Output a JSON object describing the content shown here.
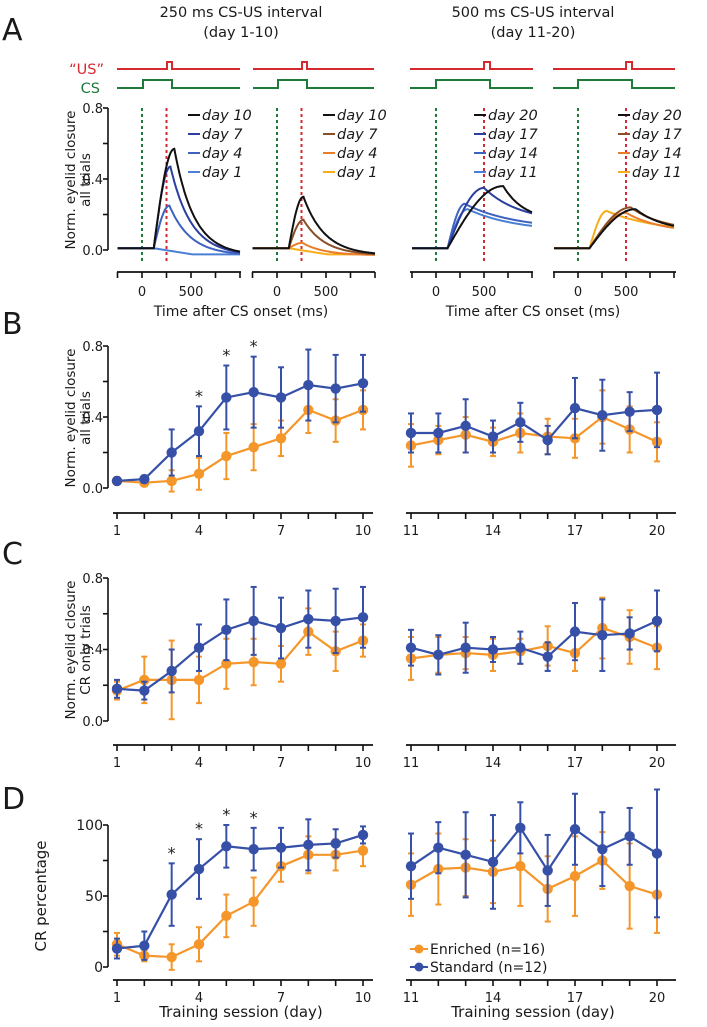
{
  "colors": {
    "standard": "#3650a8",
    "enriched": "#f5962a",
    "us": "#d6282f",
    "cs": "#1e7a3a",
    "axis": "#111111",
    "day_black": "#111111",
    "blue_dark": "#2b3fa0",
    "blue_mid": "#3d62c0",
    "blue_light": "#4a7fd6",
    "brown": "#8a4f26",
    "orange_mid": "#e87d2a",
    "yellow_orange": "#f7ad1a"
  },
  "panel_labels": [
    "A",
    "B",
    "C",
    "D"
  ],
  "headers": {
    "left_line1": "250 ms CS-US interval",
    "left_line2": "(day 1-10)",
    "right_line1": "500 ms CS-US interval",
    "right_line2": "(day 11-20)"
  },
  "stimulus_labels": {
    "us": "“US”",
    "cs": "CS"
  },
  "panel_a": {
    "ylabel_line1": "Norm. eyelid closure",
    "ylabel_line2": "all trials",
    "yticks": [
      "0.8",
      "0.4",
      "0.0"
    ],
    "xticks": [
      "0",
      "500"
    ],
    "xlabel": "Time after CS onset (ms)",
    "legends": [
      [
        "day 10",
        "day 7",
        "day 4",
        "day 1"
      ],
      [
        "day 10",
        "day 7",
        "day 4",
        "day 1"
      ],
      [
        "day 20",
        "day 17",
        "day 14",
        "day 11"
      ],
      [
        "day 20",
        "day 17",
        "day 14",
        "day 11"
      ]
    ]
  },
  "panel_b": {
    "ylabel_line1": "Norm. eyelid closure",
    "ylabel_line2": "all trials",
    "yticks": [
      "0.8",
      "0.4",
      "0.0"
    ]
  },
  "panel_c": {
    "ylabel_line1": "Norm. eyelid closure",
    "ylabel_line2": "CR only trials",
    "yticks": [
      "0.8",
      "0.4",
      "0.0"
    ]
  },
  "panel_d": {
    "ylabel": "CR percentage",
    "yticks": [
      "100",
      "50",
      "0"
    ],
    "xlabel": "Training session (day)"
  },
  "xticks_left": [
    "1",
    "4",
    "7",
    "10"
  ],
  "xticks_right": [
    "11",
    "14",
    "17",
    "20"
  ],
  "legend": {
    "enriched": "Enriched (n=16)",
    "standard": "Standard (n=12)"
  },
  "significance_marker": "*",
  "chart_data": [
    {
      "type": "line",
      "title": "A: Norm. eyelid closure traces (all trials)",
      "xlabel": "Time after CS onset (ms)",
      "ylabel": "Norm. eyelid closure all trials",
      "ylim": [
        0,
        0.8
      ],
      "subplots": [
        {
          "name": "250ms standard",
          "cs_us_interval_ms": 250,
          "series": [
            {
              "name": "day 10",
              "peak": 0.57,
              "peak_time_ms": 330
            },
            {
              "name": "day 7",
              "peak": 0.47,
              "peak_time_ms": 290
            },
            {
              "name": "day 4",
              "peak": 0.25,
              "peak_time_ms": 280
            },
            {
              "name": "day 1",
              "peak": 0.01,
              "peak_time_ms": 100
            }
          ]
        },
        {
          "name": "250ms enriched",
          "cs_us_interval_ms": 250,
          "series": [
            {
              "name": "day 10",
              "peak": 0.3,
              "peak_time_ms": 270
            },
            {
              "name": "day 7",
              "peak": 0.17,
              "peak_time_ms": 270
            },
            {
              "name": "day 4",
              "peak": 0.04,
              "peak_time_ms": 260
            },
            {
              "name": "day 1",
              "peak": 0.01,
              "peak_time_ms": 100
            }
          ]
        },
        {
          "name": "500ms standard",
          "cs_us_interval_ms": 500,
          "series": [
            {
              "name": "day 20",
              "peak": 0.36,
              "peak_time_ms": 700
            },
            {
              "name": "day 17",
              "peak": 0.35,
              "peak_time_ms": 500
            },
            {
              "name": "day 14",
              "peak": 0.26,
              "peak_time_ms": 300
            },
            {
              "name": "day 11",
              "peak": 0.23,
              "peak_time_ms": 330
            }
          ]
        },
        {
          "name": "500ms enriched",
          "cs_us_interval_ms": 500,
          "series": [
            {
              "name": "day 20",
              "peak": 0.23,
              "peak_time_ms": 600
            },
            {
              "name": "day 17",
              "peak": 0.24,
              "peak_time_ms": 550
            },
            {
              "name": "day 14",
              "peak": 0.21,
              "peak_time_ms": 500
            },
            {
              "name": "day 11",
              "peak": 0.22,
              "peak_time_ms": 300
            }
          ]
        }
      ]
    },
    {
      "type": "line",
      "title": "B: Norm. eyelid closure, all trials",
      "xlabel": "Training session (day)",
      "ylabel": "Norm. eyelid closure all trials",
      "ylim": [
        0,
        0.8
      ],
      "x": [
        1,
        2,
        3,
        4,
        5,
        6,
        7,
        8,
        9,
        10,
        11,
        12,
        13,
        14,
        15,
        16,
        17,
        18,
        19,
        20
      ],
      "series": [
        {
          "name": "Standard (n=12)",
          "values": [
            0.04,
            0.05,
            0.2,
            0.32,
            0.51,
            0.54,
            0.51,
            0.58,
            0.56,
            0.59,
            0.31,
            0.31,
            0.35,
            0.29,
            0.37,
            0.27,
            0.45,
            0.41,
            0.43,
            0.44
          ],
          "err": [
            0.02,
            0.02,
            0.13,
            0.14,
            0.18,
            0.2,
            0.17,
            0.2,
            0.19,
            0.16,
            0.11,
            0.11,
            0.15,
            0.09,
            0.11,
            0.08,
            0.17,
            0.2,
            0.11,
            0.21
          ]
        },
        {
          "name": "Enriched (n=16)",
          "values": [
            0.04,
            0.03,
            0.04,
            0.08,
            0.18,
            0.23,
            0.28,
            0.44,
            0.38,
            0.44,
            0.24,
            0.27,
            0.3,
            0.26,
            0.31,
            0.29,
            0.28,
            0.4,
            0.33,
            0.26
          ],
          "err": [
            0.02,
            0.02,
            0.06,
            0.09,
            0.13,
            0.13,
            0.1,
            0.13,
            0.12,
            0.11,
            0.12,
            0.08,
            0.1,
            0.08,
            0.11,
            0.1,
            0.11,
            0.15,
            0.13,
            0.11
          ]
        }
      ],
      "significant_days": [
        4,
        5,
        6
      ]
    },
    {
      "type": "line",
      "title": "C: Norm. eyelid closure, CR only trials",
      "xlabel": "Training session (day)",
      "ylabel": "Norm. eyelid closure CR only trials",
      "ylim": [
        0,
        0.8
      ],
      "x": [
        1,
        2,
        3,
        4,
        5,
        6,
        7,
        8,
        9,
        10,
        11,
        12,
        13,
        14,
        15,
        16,
        17,
        18,
        19,
        20
      ],
      "series": [
        {
          "name": "Standard (n=12)",
          "values": [
            0.18,
            0.17,
            0.28,
            0.41,
            0.51,
            0.56,
            0.52,
            0.57,
            0.56,
            0.58,
            0.41,
            0.37,
            0.41,
            0.4,
            0.41,
            0.36,
            0.5,
            0.48,
            0.49,
            0.56
          ],
          "err": [
            0.05,
            0.05,
            0.12,
            0.13,
            0.17,
            0.19,
            0.17,
            0.16,
            0.18,
            0.17,
            0.1,
            0.11,
            0.14,
            0.07,
            0.09,
            0.08,
            0.16,
            0.2,
            0.09,
            0.17
          ]
        },
        {
          "name": "Enriched (n=16)",
          "values": [
            0.17,
            0.23,
            0.23,
            0.23,
            0.32,
            0.33,
            0.32,
            0.5,
            0.39,
            0.45,
            0.35,
            0.37,
            0.38,
            0.37,
            0.39,
            0.42,
            0.38,
            0.52,
            0.47,
            0.41
          ],
          "err": [
            0.05,
            0.13,
            0.22,
            0.13,
            0.14,
            0.13,
            0.1,
            0.13,
            0.11,
            0.09,
            0.12,
            0.1,
            0.09,
            0.09,
            0.07,
            0.11,
            0.1,
            0.17,
            0.15,
            0.12
          ]
        }
      ]
    },
    {
      "type": "line",
      "title": "D: CR percentage",
      "xlabel": "Training session (day)",
      "ylabel": "CR percentage",
      "ylim": [
        0,
        100
      ],
      "x": [
        1,
        2,
        3,
        4,
        5,
        6,
        7,
        8,
        9,
        10,
        11,
        12,
        13,
        14,
        15,
        16,
        17,
        18,
        19,
        20
      ],
      "series": [
        {
          "name": "Standard (n=12)",
          "values": [
            13,
            15,
            51,
            69,
            85,
            83,
            84,
            86,
            87,
            93,
            71,
            84,
            79,
            74,
            98,
            68,
            97,
            83,
            92,
            80
          ],
          "err": [
            7,
            10,
            22,
            21,
            15,
            15,
            14,
            18,
            10,
            6,
            23,
            18,
            30,
            33,
            18,
            25,
            25,
            26,
            20,
            45
          ]
        },
        {
          "name": "Enriched (n=16)",
          "values": [
            16,
            8,
            7,
            16,
            36,
            46,
            71,
            79,
            79,
            82,
            58,
            69,
            70,
            67,
            71,
            55,
            64,
            75,
            57,
            51
          ],
          "err": [
            8,
            4,
            9,
            12,
            15,
            17,
            11,
            13,
            11,
            11,
            22,
            25,
            20,
            22,
            28,
            23,
            28,
            20,
            30,
            27
          ]
        }
      ],
      "significant_days": [
        3,
        4,
        5,
        6
      ]
    }
  ]
}
